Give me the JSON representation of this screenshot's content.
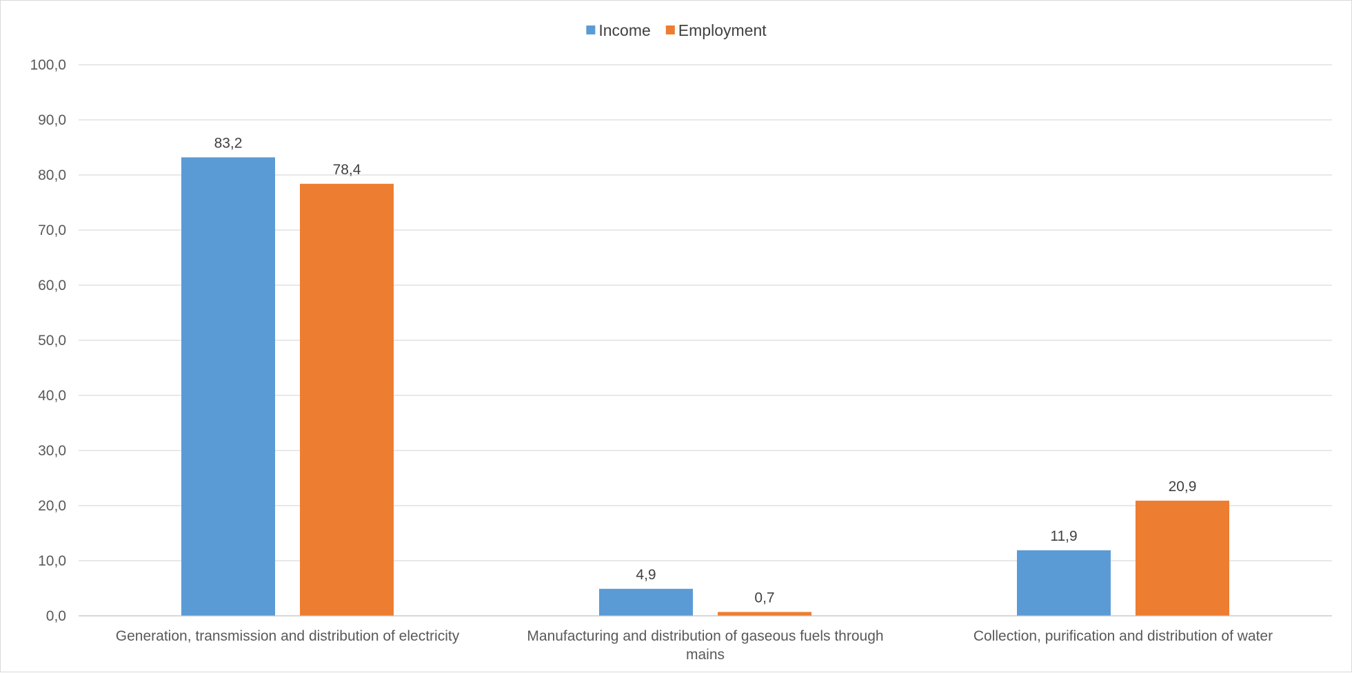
{
  "chart_data": {
    "type": "bar",
    "categories": [
      [
        "Generation, transmission and distribution of electricity"
      ],
      [
        "Manufacturing and distribution of gaseous fuels through",
        "mains"
      ],
      [
        "Collection, purification and distribution of water"
      ]
    ],
    "series": [
      {
        "name": "Income",
        "color": "#5b9bd5",
        "values": [
          83.2,
          4.9,
          11.9
        ],
        "labels": [
          "83,2",
          "4,9",
          "11,9"
        ]
      },
      {
        "name": "Employment",
        "color": "#ed7d31",
        "values": [
          78.4,
          0.7,
          20.9
        ],
        "labels": [
          "78,4",
          "0,7",
          "20,9"
        ]
      }
    ],
    "ylim": [
      0,
      100
    ],
    "y_ticks": [
      0,
      10,
      20,
      30,
      40,
      50,
      60,
      70,
      80,
      90,
      100
    ],
    "y_tick_labels": [
      "0,0",
      "10,0",
      "20,0",
      "30,0",
      "40,0",
      "50,0",
      "60,0",
      "70,0",
      "80,0",
      "90,0",
      "100,0"
    ],
    "grid": true,
    "legend_position": "top-center",
    "title": "",
    "xlabel": "",
    "ylabel": ""
  }
}
